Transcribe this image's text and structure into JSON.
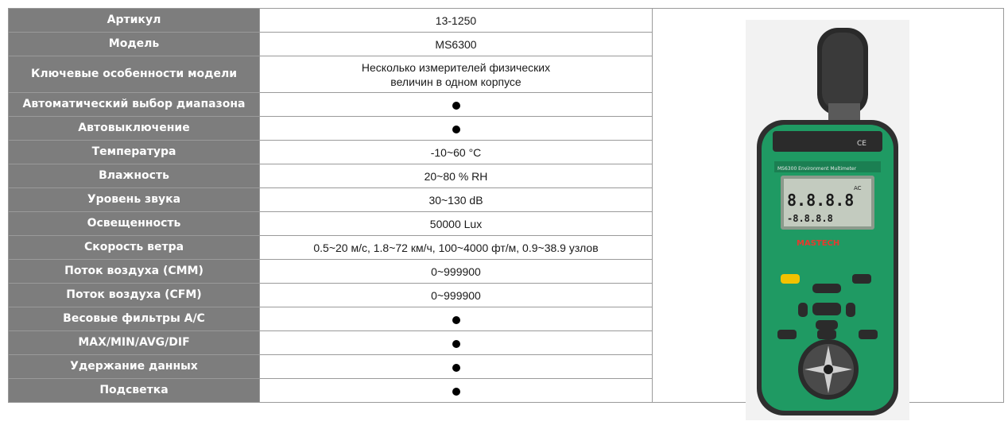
{
  "specs": {
    "rows": [
      {
        "label": "Артикул",
        "value": "13-1250"
      },
      {
        "label": "Модель",
        "value": "MS6300"
      },
      {
        "label": "Ключевые особенности модели",
        "value_lines": [
          "Несколько измерителей физических",
          "величин в одном корпусе"
        ]
      },
      {
        "label": "Автоматический выбор диапазона",
        "dot": true
      },
      {
        "label": "Автовыключение",
        "dot": true
      },
      {
        "label": "Температура",
        "value": "-10~60 °C"
      },
      {
        "label": "Влажность",
        "value": "20~80 % RH"
      },
      {
        "label": "Уровень звука",
        "value": "30~130 dB"
      },
      {
        "label": "Освещенность",
        "value": "50000 Lux"
      },
      {
        "label": "Скорость ветра",
        "value": "0.5~20 м/с, 1.8~72 км/ч, 100~4000 фт/м, 0.9~38.9 узлов"
      },
      {
        "label": "Поток воздуха (CMM)",
        "value": "0~999900"
      },
      {
        "label": "Поток воздуха (CFM)",
        "value": "0~999900"
      },
      {
        "label": "Весовые фильтры A/C",
        "dot": true
      },
      {
        "label": "MAX/MIN/AVG/DIF",
        "dot": true
      },
      {
        "label": "Удержание данных",
        "dot": true
      },
      {
        "label": "Подсветка",
        "dot": true
      }
    ]
  },
  "device": {
    "icon": "multimeter-photo",
    "brand": "MASTECH",
    "model_caption": "MS6300 Environment Multimeter",
    "ce_mark": "CE",
    "lcd_main": "8.8.8.8",
    "lcd_sub": "-8.8.8.8",
    "lcd_prefix": "AC",
    "body_color": "#1f9a63",
    "shell_color": "#3a3a3a"
  }
}
